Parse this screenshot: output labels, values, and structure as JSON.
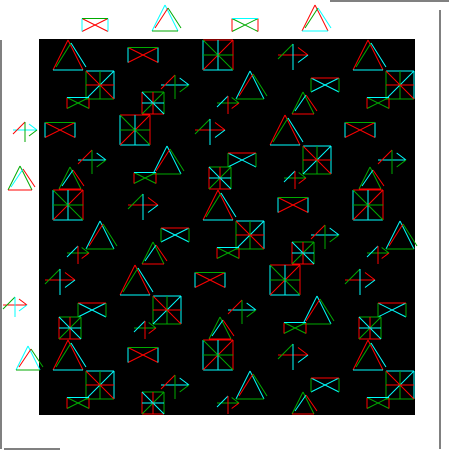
{
  "canvas": {
    "background": "#ffffff",
    "panel_color": "#000000"
  },
  "pattern": {
    "stroke_colors": [
      "#ff0000",
      "#00ffff",
      "#00aa00"
    ],
    "motif_names": [
      "triangle-stack",
      "bowtie",
      "grid-cell",
      "arrow-pair"
    ]
  }
}
